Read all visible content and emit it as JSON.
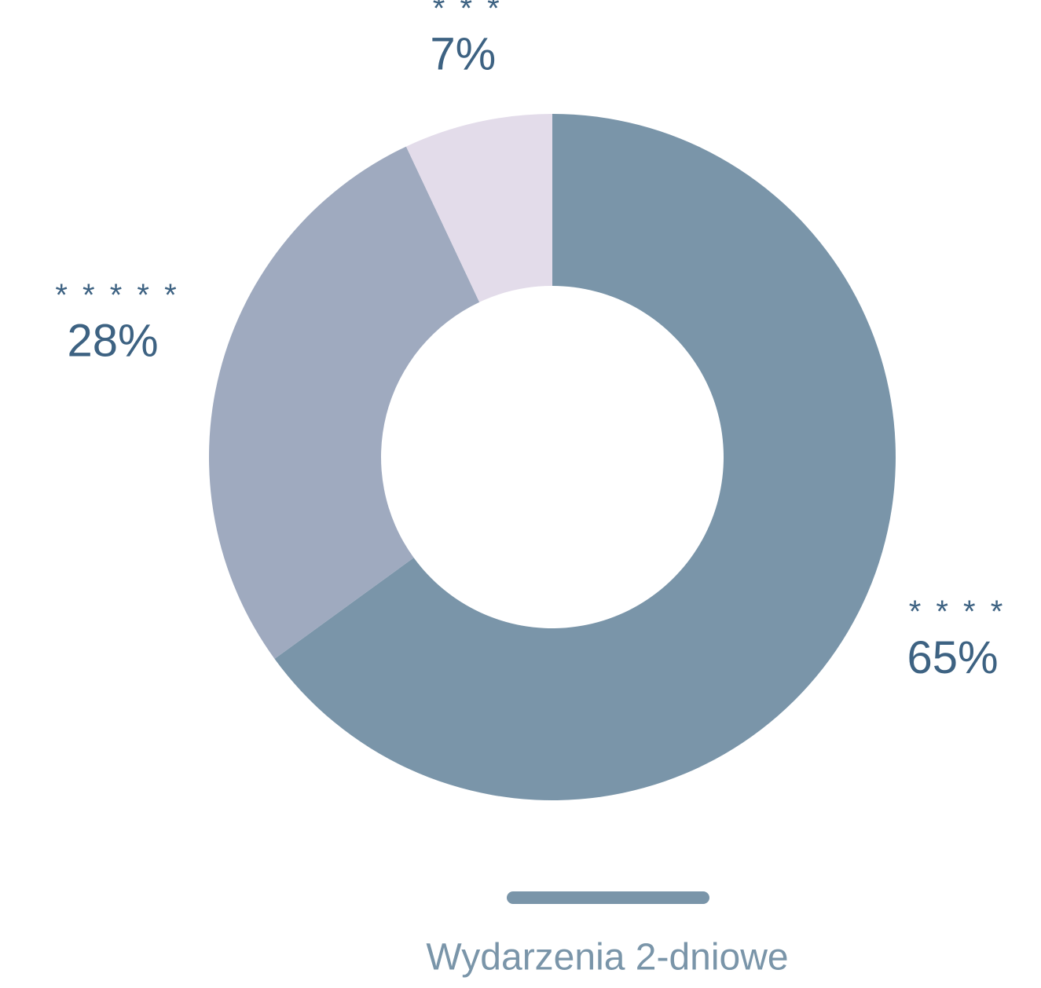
{
  "chart_data": {
    "type": "donut",
    "title": "Wydarzenia 2-dniowe",
    "categories": [
      "* * * *",
      "* * * * *",
      "* * *"
    ],
    "values": [
      65,
      28,
      7
    ],
    "value_labels": [
      "65%",
      "28%",
      "7%"
    ],
    "colors": [
      "#7a95a9",
      "#9faabf",
      "#e3dcea"
    ]
  }
}
